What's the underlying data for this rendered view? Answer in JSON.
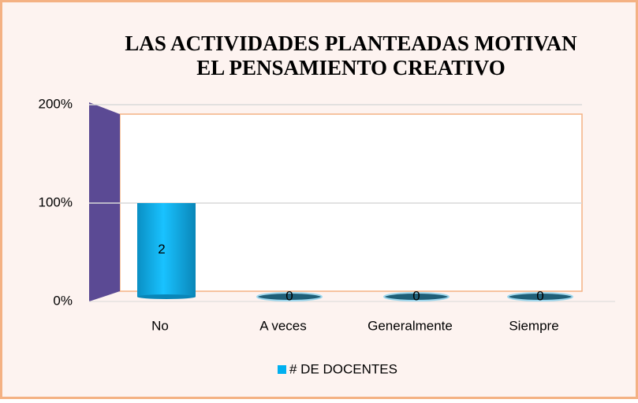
{
  "chart_data": {
    "type": "bar",
    "title": [
      "LAS ACTIVIDADES PLANTEADAS MOTIVAN",
      "EL PENSAMIENTO CREATIVO"
    ],
    "categories": [
      "No",
      "A veces",
      "Generalmente",
      "Siempre"
    ],
    "series": [
      {
        "name": "# DE DOCENTES",
        "color": "#00b0f0",
        "values": [
          100,
          0,
          0,
          0
        ],
        "data_labels": [
          2,
          0,
          0,
          0
        ]
      }
    ],
    "ylim": [
      0,
      200
    ],
    "yticks": [
      {
        "value": 0,
        "label": "0%"
      },
      {
        "value": 100,
        "label": "100%"
      },
      {
        "value": 200,
        "label": "200%"
      }
    ],
    "grid": true,
    "legend": "bottom"
  }
}
